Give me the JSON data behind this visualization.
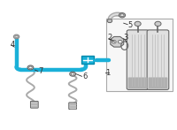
{
  "bg_color": "#ffffff",
  "cyan_color": "#1ab0d8",
  "gray_color": "#aaaaaa",
  "dark_gray": "#666666",
  "label_color": "#333333",
  "fig_width": 2.0,
  "fig_height": 1.47,
  "dpi": 100,
  "pipe_lw": 3.2,
  "sensor_lw": 1.4
}
